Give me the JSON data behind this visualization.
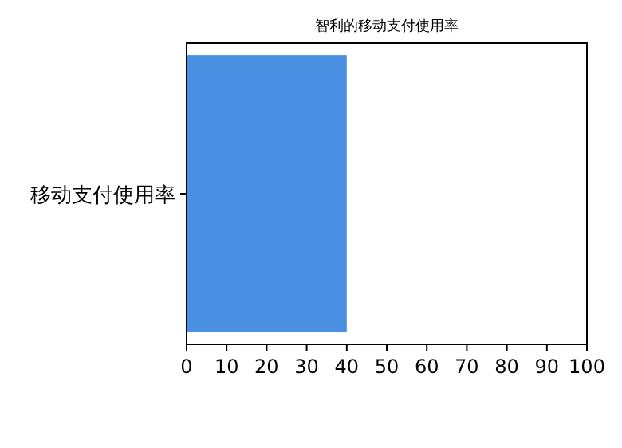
{
  "chart_data": {
    "type": "bar",
    "orientation": "horizontal",
    "title": "智利的移动支付使用率",
    "categories": [
      "移动支付使用率"
    ],
    "values": [
      40
    ],
    "color": "#4a90e2",
    "xlim": [
      0,
      100
    ],
    "xticks": [
      0,
      10,
      20,
      30,
      40,
      50,
      60,
      70,
      80,
      90,
      100
    ],
    "grid": false
  }
}
